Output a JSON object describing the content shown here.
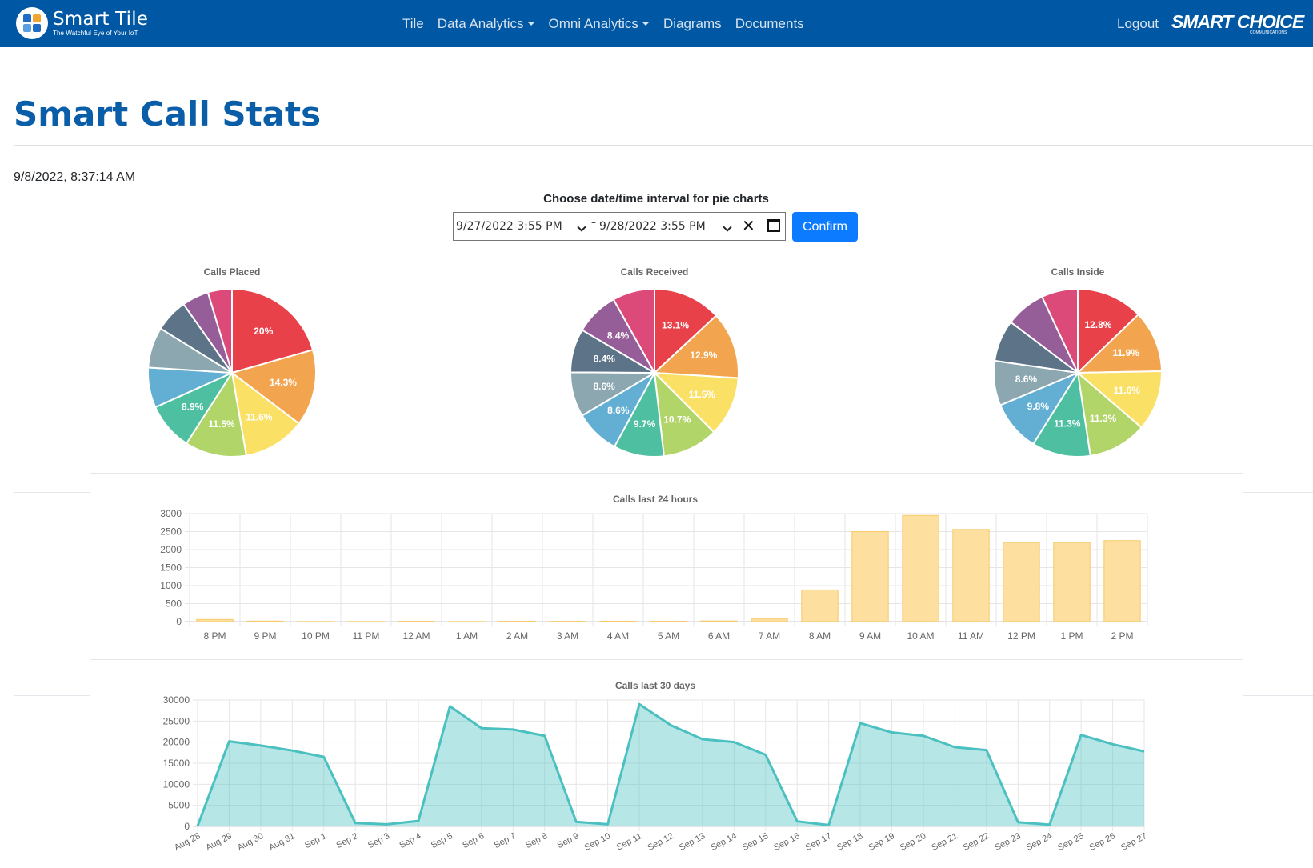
{
  "navbar": {
    "brand_name": "Smart Tile",
    "brand_tagline": "The Watchful Eye of Your IoT",
    "links": [
      {
        "label": "Tile",
        "dropdown": false
      },
      {
        "label": "Data Analytics",
        "dropdown": true
      },
      {
        "label": "Omni Analytics",
        "dropdown": true
      },
      {
        "label": "Diagrams",
        "dropdown": false
      },
      {
        "label": "Documents",
        "dropdown": false
      }
    ],
    "logout": "Logout",
    "partner_logo": "SMART CHOICE",
    "partner_logo_sub": "COMMUNICATIONS",
    "color": "#0057a3"
  },
  "page": {
    "title": "Smart Call Stats",
    "timestamp": "9/8/2022, 8:37:14 AM"
  },
  "interval": {
    "label": "Choose date/time interval for pie charts",
    "start": "9/27/2022 3:55 PM",
    "separator": "–",
    "end": "9/28/2022 3:55 PM",
    "confirm_label": "Confirm"
  },
  "chart_data": [
    {
      "type": "pie",
      "title": "Calls Placed",
      "values": [
        20,
        14.3,
        11.6,
        11.5,
        8.9,
        7.5,
        7.6,
        6.2,
        5.0,
        4.5
      ],
      "labels": [
        "20%",
        "14.3%",
        "11.6%",
        "11.5%",
        "8.9%",
        "",
        "",
        "",
        "",
        ""
      ],
      "colors": [
        "#e8414a",
        "#f2a54e",
        "#fbe066",
        "#b2d56a",
        "#4fbfa2",
        "#63aed3",
        "#8ca7b0",
        "#5c7388",
        "#965e98",
        "#dc4a7a"
      ]
    },
    {
      "type": "pie",
      "title": "Calls Received",
      "values": [
        13.1,
        12.9,
        11.5,
        10.7,
        9.7,
        8.6,
        8.6,
        8.4,
        8.4,
        8.1
      ],
      "labels": [
        "13.1%",
        "12.9%",
        "11.5%",
        "10.7%",
        "9.7%",
        "8.6%",
        "8.6%",
        "8.4%",
        "8.4%",
        ""
      ],
      "colors": [
        "#e8414a",
        "#f2a54e",
        "#fbe066",
        "#b2d56a",
        "#4fbfa2",
        "#63aed3",
        "#8ca7b0",
        "#5c7388",
        "#965e98",
        "#dc4a7a"
      ]
    },
    {
      "type": "pie",
      "title": "Calls Inside",
      "values": [
        12.8,
        11.9,
        11.6,
        11.3,
        11.3,
        9.8,
        8.6,
        8.0,
        7.7,
        7.0
      ],
      "labels": [
        "12.8%",
        "11.9%",
        "11.6%",
        "11.3%",
        "11.3%",
        "9.8%",
        "8.6%",
        "",
        "",
        ""
      ],
      "colors": [
        "#e8414a",
        "#f2a54e",
        "#fbe066",
        "#b2d56a",
        "#4fbfa2",
        "#63aed3",
        "#8ca7b0",
        "#5c7388",
        "#965e98",
        "#dc4a7a"
      ]
    },
    {
      "type": "bar",
      "title": "Calls last 24 hours",
      "categories": [
        "8 PM",
        "9 PM",
        "10 PM",
        "11 PM",
        "12 AM",
        "1 AM",
        "2 AM",
        "3 AM",
        "4 AM",
        "5 AM",
        "6 AM",
        "7 AM",
        "8 AM",
        "9 AM",
        "10 AM",
        "11 AM",
        "12 PM",
        "1 PM",
        "2 PM"
      ],
      "values": [
        60,
        15,
        5,
        5,
        10,
        5,
        10,
        8,
        12,
        10,
        18,
        85,
        880,
        2500,
        2950,
        2560,
        2200,
        2200,
        2250
      ],
      "ylim": [
        0,
        3000
      ],
      "yticks": [
        "0",
        "500",
        "1000",
        "1500",
        "2000",
        "2500",
        "3000"
      ],
      "grid": true,
      "color": "#fde0a0"
    },
    {
      "type": "area",
      "title": "Calls last 30 days",
      "categories": [
        "Aug 28",
        "Aug 29",
        "Aug 30",
        "Aug 31",
        "Sep 1",
        "Sep 2",
        "Sep 3",
        "Sep 4",
        "Sep 5",
        "Sep 6",
        "Sep 7",
        "Sep 8",
        "Sep 9",
        "Sep 10",
        "Sep 11",
        "Sep 12",
        "Sep 13",
        "Sep 14",
        "Sep 15",
        "Sep 16",
        "Sep 17",
        "Sep 18",
        "Sep 19",
        "Sep 20",
        "Sep 21",
        "Sep 22",
        "Sep 23",
        "Sep 24",
        "Sep 25",
        "Sep 26",
        "Sep 27"
      ],
      "values": [
        100,
        20200,
        19200,
        18000,
        16500,
        800,
        500,
        1300,
        28500,
        23300,
        23000,
        21500,
        1100,
        500,
        29000,
        24000,
        20700,
        20000,
        17000,
        1200,
        300,
        24500,
        22300,
        21500,
        18800,
        18100,
        1000,
        400,
        21700,
        19500,
        17800
      ],
      "ylim": [
        0,
        30000
      ],
      "yticks": [
        "0",
        "5000",
        "10000",
        "15000",
        "20000",
        "25000",
        "30000"
      ],
      "grid": true,
      "color": "#4bc0c0"
    }
  ]
}
